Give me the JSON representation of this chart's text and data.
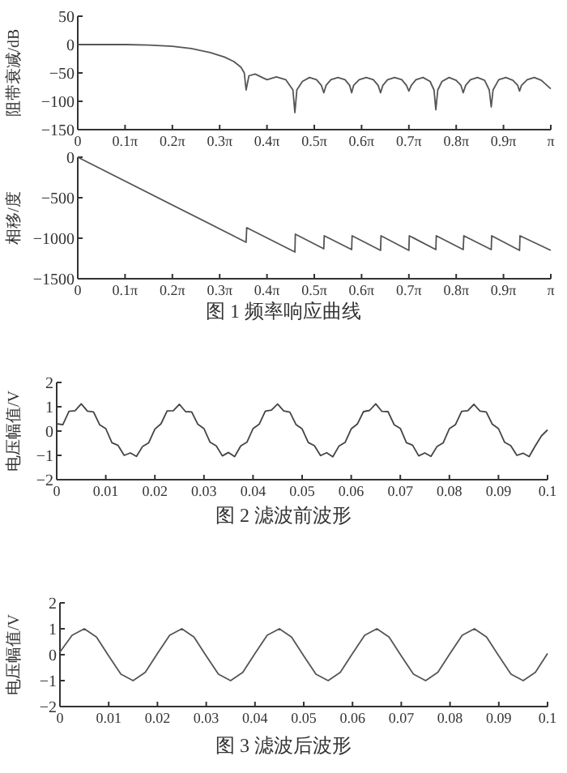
{
  "chart_data": [
    {
      "type": "line",
      "ylabel": "阻带衰减/dB",
      "xlim": [
        0,
        3.1416
      ],
      "ylim": [
        -150,
        50
      ],
      "yticks": [
        -150,
        -100,
        -50,
        0,
        50
      ],
      "xticks": [
        0,
        {
          "value": 0.3142,
          "label": "0.1π"
        },
        {
          "value": 0.6283,
          "label": "0.2π"
        },
        {
          "value": 0.9425,
          "label": "0.3π"
        },
        {
          "value": 1.2566,
          "label": "0.4π"
        },
        {
          "value": 1.5708,
          "label": "0.5π"
        },
        {
          "value": 1.885,
          "label": "0.6π"
        },
        {
          "value": 2.1991,
          "label": "0.7π"
        },
        {
          "value": 2.5133,
          "label": "0.8π"
        },
        {
          "value": 2.8274,
          "label": "0.9π"
        },
        {
          "value": 3.1416,
          "label": "π"
        }
      ],
      "x": [
        0,
        0.157,
        0.314,
        0.471,
        0.628,
        0.754,
        0.88,
        0.974,
        1.037,
        1.084,
        1.106,
        1.118,
        1.137,
        1.178,
        1.225,
        1.257,
        1.319,
        1.382,
        1.429,
        1.442,
        1.455,
        1.492,
        1.539,
        1.586,
        1.618,
        1.634,
        1.649,
        1.681,
        1.728,
        1.775,
        1.806,
        1.819,
        1.832,
        1.869,
        1.916,
        1.963,
        1.995,
        2.011,
        2.026,
        2.058,
        2.105,
        2.152,
        2.183,
        2.199,
        2.215,
        2.246,
        2.293,
        2.34,
        2.366,
        2.378,
        2.391,
        2.419,
        2.466,
        2.513,
        2.545,
        2.56,
        2.576,
        2.608,
        2.655,
        2.702,
        2.733,
        2.746,
        2.758,
        2.796,
        2.843,
        2.89,
        2.922,
        2.934,
        2.947,
        2.985,
        3.032,
        3.079,
        3.1416
      ],
      "series": [
        {
          "color": "#555555",
          "values": [
            0,
            0,
            0,
            -1,
            -3,
            -7,
            -14,
            -22,
            -30,
            -40,
            -50,
            -80,
            -55,
            -52,
            -58,
            -62,
            -57,
            -62,
            -80,
            -120,
            -80,
            -65,
            -58,
            -62,
            -72,
            -85,
            -72,
            -62,
            -58,
            -62,
            -72,
            -85,
            -72,
            -62,
            -58,
            -62,
            -72,
            -85,
            -72,
            -62,
            -58,
            -62,
            -72,
            -82,
            -72,
            -62,
            -58,
            -65,
            -80,
            -115,
            -80,
            -65,
            -58,
            -63,
            -72,
            -85,
            -72,
            -62,
            -58,
            -63,
            -80,
            -110,
            -80,
            -62,
            -58,
            -63,
            -72,
            -82,
            -72,
            -62,
            -58,
            -63,
            -78
          ]
        }
      ]
    },
    {
      "type": "line",
      "ylabel": "相移/度",
      "title": "图 1   频率响应曲线",
      "xlim": [
        0,
        3.1416
      ],
      "ylim": [
        -1500,
        0
      ],
      "yticks": [
        -1500,
        -1000,
        -500,
        0
      ],
      "xticks": [
        0,
        {
          "value": 0.3142,
          "label": "0.1π"
        },
        {
          "value": 0.6283,
          "label": "0.2π"
        },
        {
          "value": 0.9425,
          "label": "0.3π"
        },
        {
          "value": 1.2566,
          "label": "0.4π"
        },
        {
          "value": 1.5708,
          "label": "0.5π"
        },
        {
          "value": 1.885,
          "label": "0.6π"
        },
        {
          "value": 2.1991,
          "label": "0.7π"
        },
        {
          "value": 2.5133,
          "label": "0.8π"
        },
        {
          "value": 2.8274,
          "label": "0.9π"
        },
        {
          "value": 3.1416,
          "label": "π"
        }
      ],
      "x": [
        0,
        1.118,
        1.122,
        1.442,
        1.445,
        1.634,
        1.637,
        1.819,
        1.822,
        2.011,
        2.014,
        2.199,
        2.202,
        2.378,
        2.381,
        2.56,
        2.564,
        2.746,
        2.749,
        2.934,
        2.937,
        3.1416
      ],
      "series": [
        {
          "color": "#555555",
          "values": [
            0,
            -1050,
            -870,
            -1170,
            -950,
            -1130,
            -970,
            -1140,
            -970,
            -1150,
            -970,
            -1150,
            -970,
            -1140,
            -970,
            -1140,
            -970,
            -1140,
            -970,
            -1150,
            -970,
            -1150
          ]
        }
      ]
    },
    {
      "type": "line",
      "ylabel": "电压幅值/V",
      "title": "图 2   滤波前波形",
      "xlim": [
        0,
        0.1
      ],
      "ylim": [
        -2,
        2
      ],
      "yticks": [
        -2,
        -1,
        0,
        1,
        2
      ],
      "xticks": [
        0,
        0.01,
        0.02,
        0.03,
        0.04,
        0.05,
        0.06,
        0.07,
        0.08,
        0.09,
        0.1
      ],
      "x": [
        0,
        0.00125,
        0.0025,
        0.00375,
        0.005,
        0.00625,
        0.0075,
        0.00875,
        0.01,
        0.01125,
        0.0125,
        0.01375,
        0.015,
        0.01625,
        0.0175,
        0.01875,
        0.02,
        0.02125,
        0.0225,
        0.02375,
        0.025,
        0.02625,
        0.0275,
        0.02875,
        0.03,
        0.03125,
        0.0325,
        0.03375,
        0.035,
        0.03625,
        0.0375,
        0.03875,
        0.04,
        0.04125,
        0.0425,
        0.04375,
        0.045,
        0.04625,
        0.0475,
        0.04875,
        0.05,
        0.05125,
        0.0525,
        0.05375,
        0.055,
        0.05625,
        0.0575,
        0.05875,
        0.06,
        0.06125,
        0.0625,
        0.06375,
        0.065,
        0.06625,
        0.0675,
        0.06875,
        0.07,
        0.07125,
        0.0725,
        0.07375,
        0.075,
        0.07625,
        0.0775,
        0.07875,
        0.08,
        0.08125,
        0.0825,
        0.08375,
        0.085,
        0.08625,
        0.0875,
        0.08875,
        0.09,
        0.09125,
        0.0925,
        0.09375,
        0.095,
        0.09625,
        0.0975,
        0.09875,
        0.1
      ],
      "series": [
        {
          "color": "#444444",
          "values": [
            0.3,
            0.26,
            0.81,
            0.84,
            1.12,
            0.82,
            0.79,
            0.26,
            0.1,
            -0.48,
            -0.59,
            -1.0,
            -0.9,
            -1.04,
            -0.63,
            -0.48,
            0.08,
            0.3,
            0.83,
            0.84,
            1.1,
            0.8,
            0.79,
            0.28,
            0.1,
            -0.46,
            -0.61,
            -1.02,
            -0.88,
            -1.05,
            -0.61,
            -0.46,
            0.1,
            0.28,
            0.82,
            0.86,
            1.11,
            0.83,
            0.78,
            0.27,
            0.09,
            -0.47,
            -0.6,
            -1.01,
            -0.89,
            -1.06,
            -0.62,
            -0.47,
            0.09,
            0.29,
            0.8,
            0.85,
            1.12,
            0.81,
            0.8,
            0.26,
            0.11,
            -0.48,
            -0.58,
            -1.02,
            -0.9,
            -1.04,
            -0.63,
            -0.48,
            0.1,
            0.27,
            0.81,
            0.84,
            1.1,
            0.82,
            0.79,
            0.28,
            0.1,
            -0.46,
            -0.6,
            -1.0,
            -0.91,
            -1.05,
            -0.61,
            -0.2,
            0.05
          ]
        }
      ]
    },
    {
      "type": "line",
      "ylabel": "电压幅值/V",
      "title": "图 3   滤波后波形",
      "xlim": [
        0,
        0.1
      ],
      "ylim": [
        -2,
        2
      ],
      "yticks": [
        -2,
        -1,
        0,
        1,
        2
      ],
      "xticks": [
        0,
        0.01,
        0.02,
        0.03,
        0.04,
        0.05,
        0.06,
        0.07,
        0.08,
        0.09,
        0.1
      ],
      "x": [
        0,
        0.0025,
        0.005,
        0.0075,
        0.01,
        0.0125,
        0.015,
        0.0175,
        0.02,
        0.0225,
        0.025,
        0.0275,
        0.03,
        0.0325,
        0.035,
        0.0375,
        0.04,
        0.0425,
        0.045,
        0.0475,
        0.05,
        0.0525,
        0.055,
        0.0575,
        0.06,
        0.0625,
        0.065,
        0.0675,
        0.07,
        0.0725,
        0.075,
        0.0775,
        0.08,
        0.0825,
        0.085,
        0.0875,
        0.09,
        0.0925,
        0.095,
        0.0975,
        0.1
      ],
      "series": [
        {
          "color": "#555555",
          "values": [
            0.1,
            0.75,
            1.0,
            0.68,
            -0.05,
            -0.75,
            -1.0,
            -0.68,
            0.05,
            0.75,
            1.0,
            0.68,
            -0.05,
            -0.75,
            -1.0,
            -0.68,
            0.05,
            0.75,
            1.0,
            0.68,
            -0.05,
            -0.75,
            -1.0,
            -0.68,
            0.05,
            0.75,
            1.0,
            0.68,
            -0.05,
            -0.75,
            -1.0,
            -0.68,
            0.05,
            0.75,
            1.0,
            0.68,
            -0.05,
            -0.75,
            -1.0,
            -0.68,
            0.05
          ]
        }
      ]
    }
  ]
}
